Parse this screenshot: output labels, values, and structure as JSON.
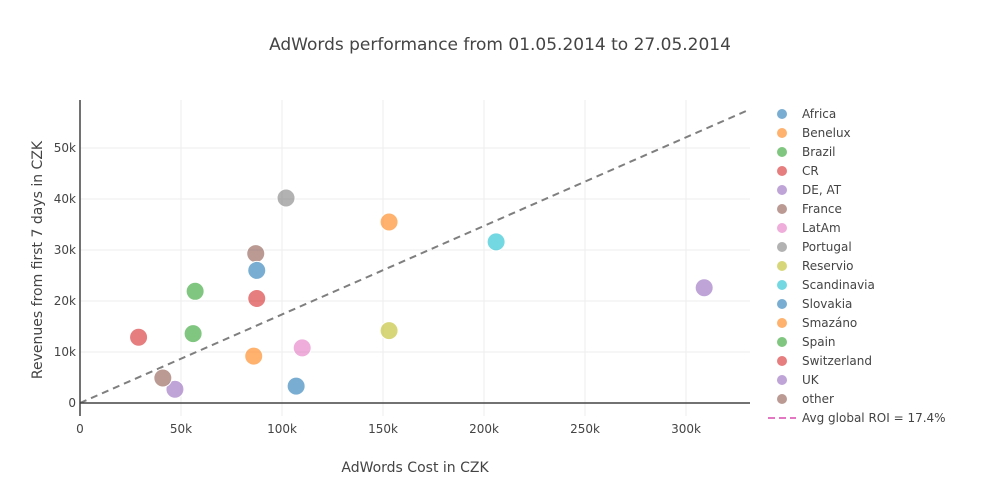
{
  "chart_data": {
    "type": "scatter",
    "title": "AdWords performance from 01.05.2014 to 27.05.2014",
    "xlabel": "AdWords Cost in CZK",
    "ylabel": "Revenues from first 7 days in CZK",
    "xlim": [
      0,
      330000
    ],
    "ylim": [
      -2500,
      60000
    ],
    "x_ticks": [
      0,
      50000,
      100000,
      150000,
      200000,
      250000,
      300000
    ],
    "x_tick_labels": [
      "0",
      "50k",
      "100k",
      "150k",
      "200k",
      "250k",
      "300k"
    ],
    "y_ticks": [
      0,
      10000,
      20000,
      30000,
      40000,
      50000
    ],
    "y_tick_labels": [
      "0",
      "10k",
      "20k",
      "30k",
      "40k",
      "50k"
    ],
    "legend_position": "right",
    "series": [
      {
        "name": "Africa",
        "color": "#1f77b4",
        "points": [
          [
            107000,
            3300
          ]
        ]
      },
      {
        "name": "Benelux",
        "color": "#ff7f0e",
        "points": [
          [
            86000,
            9200
          ]
        ]
      },
      {
        "name": "Brazil",
        "color": "#2ca02c",
        "points": [
          [
            56000,
            13600
          ]
        ]
      },
      {
        "name": "CR",
        "color": "#d62728",
        "points": [
          [
            29000,
            12900
          ]
        ]
      },
      {
        "name": "DE, AT",
        "color": "#9467bd",
        "points": [
          [
            47000,
            2700
          ]
        ]
      },
      {
        "name": "France",
        "color": "#8c564b",
        "points": [
          [
            87000,
            29300
          ]
        ]
      },
      {
        "name": "LatAm",
        "color": "#e377c2",
        "points": [
          [
            110000,
            10800
          ]
        ]
      },
      {
        "name": "Portugal",
        "color": "#7f7f7f",
        "points": [
          [
            102000,
            40200
          ]
        ]
      },
      {
        "name": "Reservio",
        "color": "#bcbd22",
        "points": [
          [
            153000,
            14200
          ]
        ]
      },
      {
        "name": "Scandinavia",
        "color": "#17becf",
        "points": [
          [
            206000,
            31600
          ]
        ]
      },
      {
        "name": "Slovakia",
        "color": "#1f77b4",
        "points": [
          [
            87500,
            26000
          ]
        ]
      },
      {
        "name": "Smazáno",
        "color": "#ff7f0e",
        "points": [
          [
            153000,
            35500
          ]
        ]
      },
      {
        "name": "Spain",
        "color": "#2ca02c",
        "points": [
          [
            57000,
            21900
          ]
        ]
      },
      {
        "name": "Switzerland",
        "color": "#d62728",
        "points": [
          [
            87500,
            20500
          ]
        ]
      },
      {
        "name": "UK",
        "color": "#9467bd",
        "points": [
          [
            309000,
            22600
          ]
        ]
      },
      {
        "name": "other",
        "color": "#8c564b",
        "points": [
          [
            41000,
            4900
          ]
        ]
      }
    ],
    "reference_line": {
      "name": "Avg global ROI = 17.4%",
      "legend_color": "#e377c2",
      "line_color": "#7f7f7f",
      "style": "dashed",
      "from": [
        0,
        0
      ],
      "to": [
        330000,
        57300
      ]
    }
  }
}
